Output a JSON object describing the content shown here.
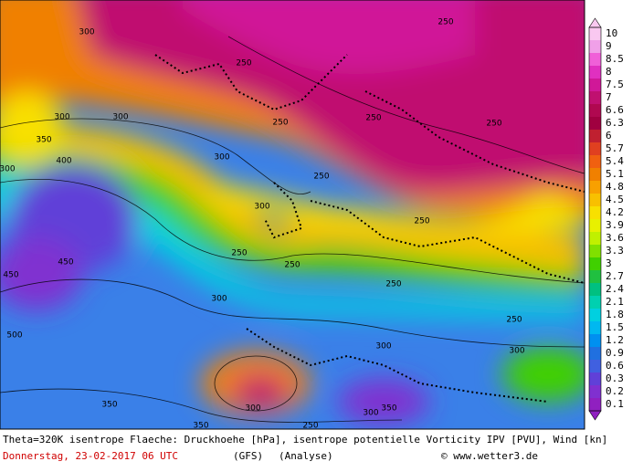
{
  "colorbar": {
    "levels": [
      10,
      9,
      8.5,
      8,
      7.5,
      7,
      6.6,
      6.3,
      6,
      5.7,
      5.4,
      5.1,
      4.8,
      4.5,
      4.2,
      3.9,
      3.6,
      3.3,
      3,
      2.7,
      2.4,
      2.1,
      1.8,
      1.5,
      1.2,
      0.9,
      0.6,
      0.3,
      0.2,
      0.1
    ],
    "colors": [
      "#f9c8f0",
      "#f0a0e8",
      "#f060d8",
      "#e030c0",
      "#d01898",
      "#c01070",
      "#b00850",
      "#a00040",
      "#c02030",
      "#e04020",
      "#f06010",
      "#f08000",
      "#f8a000",
      "#f8c000",
      "#f8e000",
      "#e8f000",
      "#c0f000",
      "#80e000",
      "#40d000",
      "#20c040",
      "#00c080",
      "#00d0b0",
      "#00d0e0",
      "#00b8f0",
      "#0090f0",
      "#2070e0",
      "#4060e0",
      "#6040d8",
      "#8030d0",
      "#9020c0"
    ]
  },
  "contour_labels": [
    "300",
    "250",
    "250",
    "250",
    "300",
    "300",
    "350",
    "400",
    "300",
    "300",
    "250",
    "300",
    "250",
    "250",
    "250",
    "250",
    "300",
    "450",
    "450",
    "500",
    "250",
    "300",
    "300",
    "350",
    "300",
    "300",
    "350",
    "350",
    "250",
    "250",
    "250"
  ],
  "footer": {
    "description": "Theta=320K isentrope Flaeche: Druckhoehe [hPa], isentrope potentielle Vorticity IPV [PVU], Wind [kn]",
    "date": "Donnerstag, 23-02-2017  06 UTC",
    "model": "(GFS)",
    "run": "(Analyse)",
    "source": "© www.wetter3.de"
  }
}
